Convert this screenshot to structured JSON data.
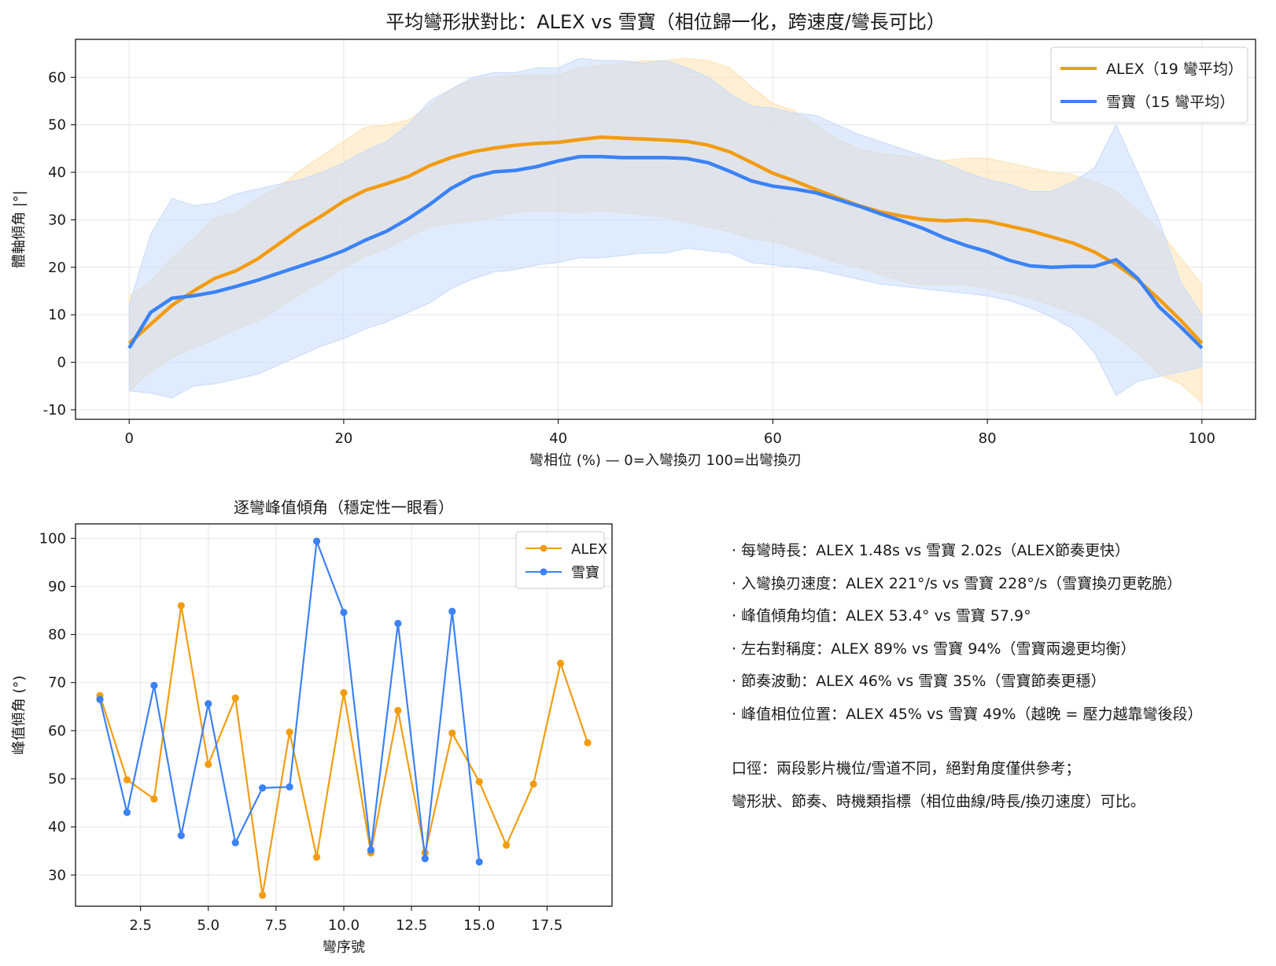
{
  "chart_data": [
    {
      "type": "line",
      "title": "平均彎形狀對比：ALEX vs 雪寶（相位歸一化，跨速度/彎長可比）",
      "xlabel": "彎相位 (%) — 0=入彎換刃 100=出彎換刃",
      "ylabel": "體軸傾角 |°|",
      "xlim": [
        -5,
        105
      ],
      "ylim": [
        -12,
        68
      ],
      "xticks": [
        0,
        20,
        40,
        60,
        80,
        100
      ],
      "yticks": [
        -10,
        0,
        10,
        20,
        30,
        40,
        50,
        60
      ],
      "x": [
        0,
        2,
        4,
        6,
        8,
        10,
        12,
        14,
        16,
        18,
        20,
        22,
        24,
        26,
        28,
        30,
        32,
        34,
        36,
        38,
        40,
        42,
        44,
        46,
        48,
        50,
        52,
        54,
        56,
        58,
        60,
        62,
        64,
        66,
        68,
        70,
        72,
        74,
        76,
        78,
        80,
        82,
        84,
        86,
        88,
        90,
        92,
        94,
        96,
        98,
        100
      ],
      "grid": true,
      "legend": "top-right",
      "series": [
        {
          "name": "ALEX（19 彎平均）",
          "color": "#F39C12",
          "band_color": "#FFE2B0",
          "mean": [
            4,
            8,
            12,
            15,
            17.7,
            19.3,
            21.8,
            25,
            28.2,
            30.9,
            33.9,
            36.2,
            37.6,
            39.1,
            41.4,
            43.1,
            44.3,
            45.1,
            45.7,
            46.1,
            46.3,
            46.9,
            47.4,
            47.2,
            47,
            46.8,
            46.5,
            45.7,
            44.3,
            42.1,
            39.8,
            38.2,
            36.4,
            34.7,
            33,
            31.7,
            30.8,
            30.1,
            29.8,
            30,
            29.7,
            28.7,
            27.7,
            26.4,
            25.1,
            23.2,
            20.6,
            17.4,
            13.3,
            8.9,
            4
          ],
          "upper": [
            14,
            17,
            22,
            26,
            30.5,
            31.5,
            34.5,
            37,
            40.5,
            43.5,
            46.5,
            49.5,
            50,
            51,
            54,
            57.5,
            59.5,
            60,
            60.5,
            60.5,
            60.5,
            62,
            62.5,
            63,
            63.5,
            63.5,
            64,
            63.5,
            62,
            58,
            54.5,
            53,
            50,
            47,
            45,
            44,
            43.5,
            43,
            42.5,
            43,
            43,
            42,
            41,
            40,
            39.5,
            38,
            36,
            32,
            28,
            22,
            16.5
          ],
          "lower": [
            -6,
            -2,
            1,
            3,
            4.8,
            7,
            8.7,
            11.5,
            14.5,
            17,
            19.8,
            22.3,
            24,
            26.3,
            28.5,
            29.2,
            29.8,
            30.5,
            31.5,
            32,
            31.8,
            31.5,
            32,
            31.5,
            31,
            30.5,
            29.5,
            28.5,
            27.5,
            26,
            25.5,
            24,
            22.5,
            21,
            20,
            18.5,
            17,
            16.3,
            16.3,
            16.3,
            15.5,
            14.5,
            13.5,
            12,
            10.5,
            8.5,
            5.5,
            2,
            -2.5,
            -4.5,
            -8.5
          ]
        },
        {
          "name": "雪寶（15 彎平均）",
          "color": "#3B82F6",
          "band_color": "#C6DBFB",
          "mean": [
            3,
            10.5,
            13.5,
            14,
            14.8,
            16,
            17.3,
            18.8,
            20.3,
            21.8,
            23.5,
            25.7,
            27.6,
            30.2,
            33.2,
            36.6,
            39,
            40.1,
            40.4,
            41.2,
            42.4,
            43.3,
            43.3,
            43.1,
            43.1,
            43.1,
            42.9,
            42,
            40.2,
            38.2,
            37.1,
            36.5,
            35.7,
            34.3,
            32.9,
            31.3,
            29.8,
            28.2,
            26.2,
            24.6,
            23.3,
            21.5,
            20.3,
            20,
            20.2,
            20.2,
            21.6,
            17.7,
            11.7,
            7.5,
            3
          ],
          "upper": [
            12,
            27,
            34.5,
            33,
            33.5,
            35.5,
            36.5,
            37.5,
            38.5,
            40,
            42,
            44.5,
            46.5,
            50,
            55,
            57.5,
            60,
            61,
            61,
            62,
            62,
            64,
            63.5,
            63.5,
            63,
            63.5,
            62,
            60,
            56.5,
            54,
            53.5,
            52.5,
            52,
            50,
            48,
            46.5,
            45,
            43.5,
            42,
            40,
            38.5,
            37.5,
            36,
            36,
            38,
            41,
            50,
            40,
            30,
            17,
            10
          ],
          "lower": [
            -6,
            -6.5,
            -7.5,
            -5,
            -4.5,
            -3.5,
            -2.5,
            -0.5,
            1.5,
            3.5,
            5,
            7,
            8.5,
            10.5,
            12.5,
            15.5,
            17.5,
            19,
            19.5,
            20.5,
            21,
            22,
            22,
            22.5,
            23,
            23,
            24,
            23.5,
            23,
            21,
            20.5,
            20,
            19.5,
            18.5,
            17.5,
            16.5,
            16,
            15.5,
            15,
            14.5,
            14,
            13,
            11.5,
            9.5,
            7,
            2,
            -7,
            -4,
            -3,
            -2,
            -1
          ]
        }
      ]
    },
    {
      "type": "line",
      "title": "逐彎峰值傾角（穩定性一眼看）",
      "xlabel": "彎序號",
      "ylabel": "峰值傾角 (°)",
      "xlim": [
        0.1,
        19.9
      ],
      "ylim": [
        23.5,
        103
      ],
      "xticks": [
        2.5,
        5.0,
        7.5,
        10.0,
        12.5,
        15.0,
        17.5
      ],
      "xtick_labels": [
        "2.5",
        "5.0",
        "7.5",
        "10.0",
        "12.5",
        "15.0",
        "17.5"
      ],
      "yticks": [
        30,
        40,
        50,
        60,
        70,
        80,
        90,
        100
      ],
      "grid": true,
      "legend": "top-right",
      "series": [
        {
          "name": "ALEX",
          "color": "#F39C12",
          "x": [
            1,
            2,
            3,
            4,
            5,
            6,
            7,
            8,
            9,
            10,
            11,
            12,
            13,
            14,
            15,
            16,
            17,
            18,
            19
          ],
          "values": [
            67.3,
            49.8,
            45.8,
            86,
            53,
            66.8,
            25.8,
            59.7,
            33.7,
            67.9,
            34.6,
            64.2,
            34.6,
            59.5,
            49.4,
            36.2,
            48.9,
            74,
            57.5
          ]
        },
        {
          "name": "雪寶",
          "color": "#3B82F6",
          "x": [
            1,
            2,
            3,
            4,
            5,
            6,
            7,
            8,
            9,
            10,
            11,
            12,
            13,
            14,
            15
          ],
          "values": [
            66.5,
            43,
            69.4,
            38.2,
            65.6,
            36.7,
            48.1,
            48.3,
            99.4,
            84.6,
            35.2,
            82.3,
            33.4,
            84.8,
            32.7
          ]
        }
      ]
    }
  ],
  "notes": {
    "lines": [
      "· 每彎時長：ALEX 1.48s vs 雪寶 2.02s（ALEX節奏更快）",
      "· 入彎換刃速度：ALEX 221°/s vs 雪寶 228°/s（雪寶換刃更乾脆）",
      "· 峰值傾角均值：ALEX 53.4° vs 雪寶 57.9°",
      "· 左右對稱度：ALEX 89% vs 雪寶 94%（雪寶兩邊更均衡）",
      "· 節奏波動：ALEX 46% vs 雪寶 35%（雪寶節奏更穩）",
      "· 峰值相位位置：ALEX 45% vs 雪寶 49%（越晚 = 壓力越靠彎後段）"
    ],
    "footnote": [
      "口徑：兩段影片機位/雪道不同，絕對角度僅供參考；",
      "彎形狀、節奏、時機類指標（相位曲線/時長/換刃速度）可比。"
    ]
  }
}
